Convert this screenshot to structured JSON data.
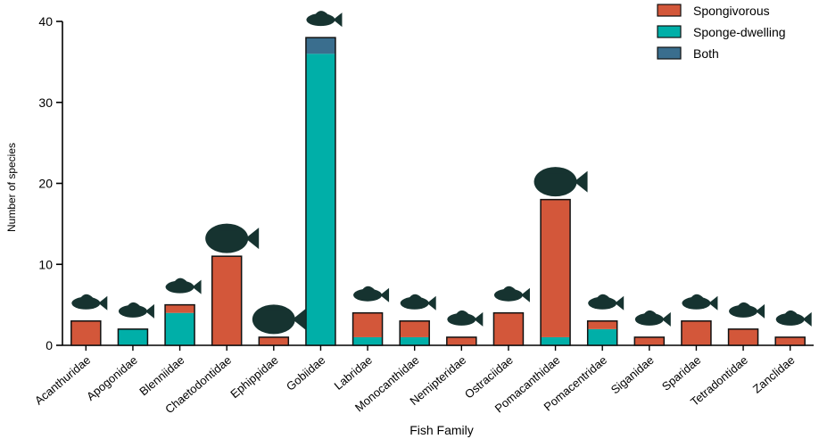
{
  "chart_data": {
    "type": "bar",
    "stacked": true,
    "categories": [
      "Acanthuridae",
      "Apogonidae",
      "Blenniidae",
      "Chaetodontidae",
      "Ephippidae",
      "Gobiidae",
      "Labridae",
      "Monocanthidae",
      "Nemipteridae",
      "Ostraciidae",
      "Pomacanthidae",
      "Pomacentridae",
      "Siganidae",
      "Sparidae",
      "Tetradontidae",
      "Zanclidae"
    ],
    "series": [
      {
        "name": "Sponge-dwelling",
        "color": "#00AFA8",
        "values": [
          0,
          2,
          4,
          0,
          0,
          36,
          1,
          1,
          0,
          0,
          1,
          2,
          0,
          0,
          0,
          0
        ]
      },
      {
        "name": "Spongivorous",
        "color": "#D3573A",
        "values": [
          3,
          0,
          1,
          11,
          1,
          0,
          3,
          2,
          1,
          4,
          17,
          1,
          1,
          3,
          2,
          1
        ]
      },
      {
        "name": "Both",
        "color": "#3A6E8E",
        "values": [
          0,
          0,
          0,
          0,
          0,
          2,
          0,
          0,
          0,
          0,
          0,
          0,
          0,
          0,
          0,
          0
        ]
      }
    ],
    "legend_order": [
      "Spongivorous",
      "Sponge-dwelling",
      "Both"
    ],
    "legend_position": "top-right",
    "xlabel": "Fish Family",
    "ylabel": "Number of species",
    "ylim": [
      0,
      40
    ],
    "yticks": [
      0,
      10,
      20,
      30,
      40
    ],
    "grid": false,
    "fish_silhouettes_above_bars": true
  }
}
